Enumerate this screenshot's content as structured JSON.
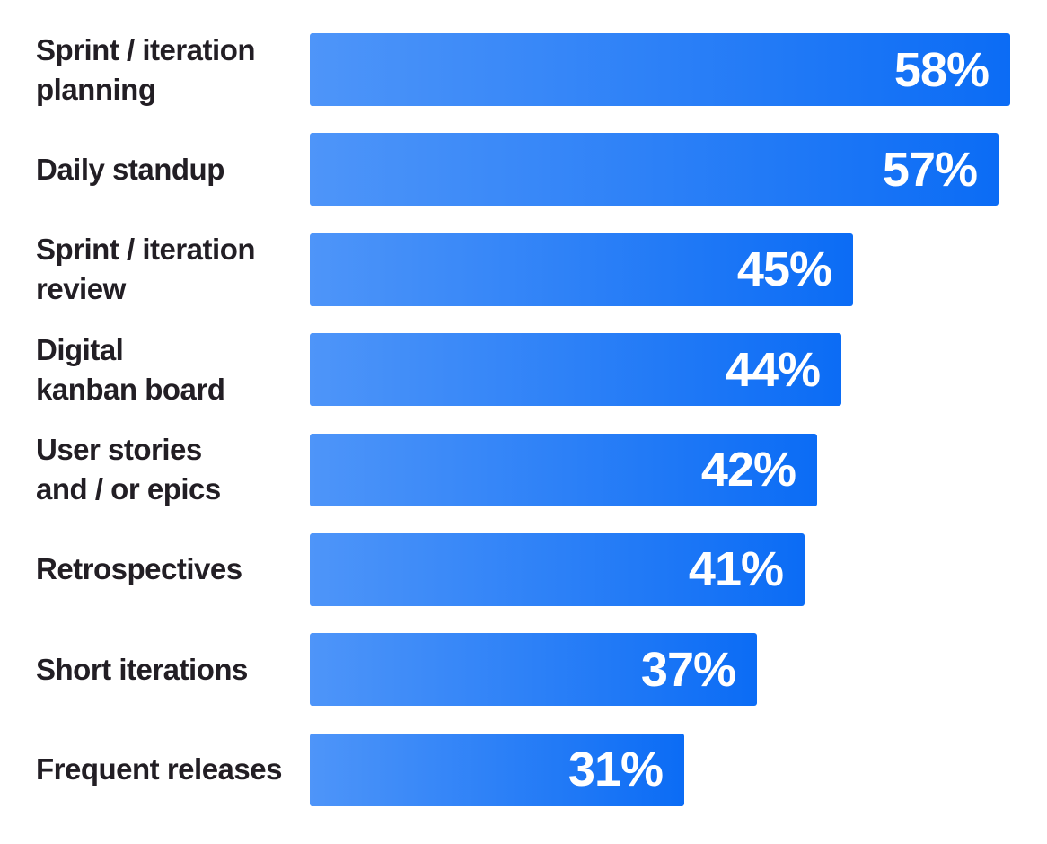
{
  "chart_data": {
    "type": "bar",
    "orientation": "horizontal",
    "title": "",
    "xlabel": "",
    "ylabel": "",
    "legend": "none",
    "grid": false,
    "axes_visible": false,
    "xlim": [
      0,
      61
    ],
    "categories": [
      "Sprint / iteration planning",
      "Daily standup",
      "Sprint / iteration review",
      "Digital kanban board",
      "User stories and / or epics",
      "Retrospectives",
      "Short iterations",
      "Frequent releases"
    ],
    "values": [
      58,
      57,
      45,
      44,
      42,
      41,
      37,
      31
    ],
    "rows": [
      {
        "label": "Sprint / iteration\nplanning",
        "value": 58,
        "value_label": "58%"
      },
      {
        "label": "Daily standup",
        "value": 57,
        "value_label": "57%"
      },
      {
        "label": "Sprint / iteration\nreview",
        "value": 45,
        "value_label": "45%"
      },
      {
        "label": "Digital\nkanban board",
        "value": 44,
        "value_label": "44%"
      },
      {
        "label": "User stories\nand / or epics",
        "value": 42,
        "value_label": "42%"
      },
      {
        "label": "Retrospectives",
        "value": 41,
        "value_label": "41%"
      },
      {
        "label": "Short iterations",
        "value": 37,
        "value_label": "37%"
      },
      {
        "label": "Frequent releases",
        "value": 31,
        "value_label": "31%"
      }
    ],
    "colors": {
      "bar_gradient_start": "#4E95F9",
      "bar_gradient_end": "#0B6CF5",
      "category_label": "#221E24",
      "value_label": "#FFFFFF",
      "background": "#FFFFFF"
    }
  }
}
